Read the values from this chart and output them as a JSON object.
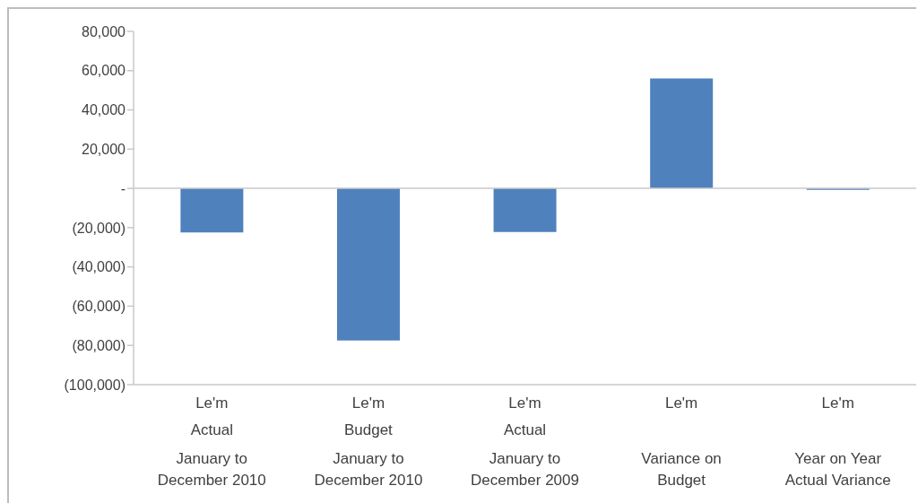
{
  "chart_data": {
    "type": "bar",
    "categories": [
      "Le'm\nActual\nJanuary to\nDecember 2010",
      "Le'm\nBudget\nJanuary to\nDecember 2010",
      "Le'm\nActual\nJanuary to\nDecember 2009",
      "Le'm\n\nVariance on\nBudget",
      "Le'm\n\nYear on Year\nActual Variance"
    ],
    "values": [
      -22500,
      -77500,
      -22200,
      56000,
      -700
    ],
    "color": "#4f81bd",
    "ylim": [
      -100000,
      80000
    ],
    "yticks": [
      {
        "value": -100000,
        "label": "(100,000)"
      },
      {
        "value": -80000,
        "label": "(80,000)"
      },
      {
        "value": -60000,
        "label": "(60,000)"
      },
      {
        "value": -40000,
        "label": "(40,000)"
      },
      {
        "value": -20000,
        "label": "(20,000)"
      },
      {
        "value": 0,
        "label": "-"
      },
      {
        "value": 20000,
        "label": "20,000"
      },
      {
        "value": 40000,
        "label": "40,000"
      },
      {
        "value": 60000,
        "label": "60,000"
      },
      {
        "value": 80000,
        "label": "80,000"
      }
    ],
    "ref_lines": [
      {
        "axis": "y",
        "value": 0,
        "color": "#c8c8c8"
      }
    ],
    "grid": false,
    "legend": false
  }
}
